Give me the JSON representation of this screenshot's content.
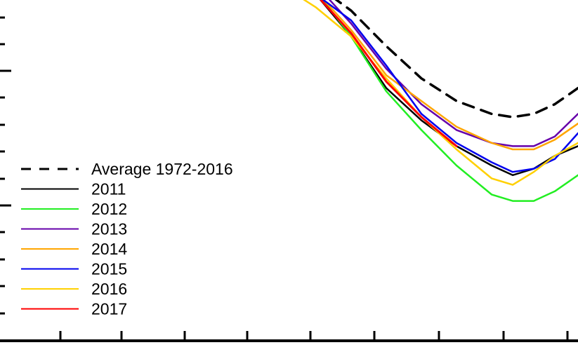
{
  "chart_data": {
    "type": "line",
    "title": "",
    "xlabel": "",
    "ylabel": "",
    "grid": false,
    "legend_position": "bottom-left",
    "xlim": [
      0,
      823
    ],
    "ylim": [
      0,
      100
    ],
    "x": [
      0,
      60,
      120,
      180,
      240,
      300,
      360,
      400,
      450,
      500,
      550,
      600,
      650,
      700,
      730,
      760,
      790,
      823
    ],
    "series": [
      {
        "name": "Average 1972-2016",
        "color": "#000000",
        "style": "dashed",
        "values": [
          null,
          null,
          null,
          null,
          null,
          null,
          null,
          100,
          96,
          88,
          77,
          67,
          60,
          56,
          55,
          56,
          59,
          64
        ]
      },
      {
        "name": "2011",
        "color": "#000000",
        "style": "solid",
        "values": [
          null,
          null,
          null,
          null,
          null,
          null,
          null,
          99,
          93,
          80,
          64,
          54,
          46,
          40,
          37,
          39,
          43,
          46
        ]
      },
      {
        "name": "2012",
        "color": "#22ee22",
        "style": "solid",
        "values": [
          null,
          null,
          null,
          null,
          null,
          null,
          null,
          99,
          94,
          80,
          63,
          51,
          40,
          31,
          29,
          29,
          32,
          37
        ]
      },
      {
        "name": "2013",
        "color": "#6600aa",
        "style": "solid",
        "values": [
          null,
          null,
          null,
          null,
          null,
          null,
          null,
          100,
          96,
          84,
          70,
          59,
          51,
          47,
          46,
          46,
          49,
          56
        ]
      },
      {
        "name": "2014",
        "color": "#ffa500",
        "style": "solid",
        "values": [
          null,
          null,
          null,
          null,
          null,
          null,
          null,
          99,
          94,
          82,
          68,
          60,
          52,
          47,
          45,
          45,
          48,
          53
        ]
      },
      {
        "name": "2015",
        "color": "#0000ee",
        "style": "solid",
        "values": [
          null,
          null,
          null,
          null,
          null,
          null,
          null,
          99,
          93,
          85,
          71,
          56,
          47,
          41,
          38,
          39,
          42,
          50
        ]
      },
      {
        "name": "2016",
        "color": "#ffd000",
        "style": "solid",
        "values": [
          null,
          null,
          null,
          null,
          null,
          null,
          100,
          96,
          89,
          80,
          67,
          55,
          45,
          36,
          34,
          38,
          43,
          47
        ]
      },
      {
        "name": "2017",
        "color": "#ff0000",
        "style": "solid",
        "values": [
          null,
          null,
          null,
          null,
          null,
          null,
          null,
          99,
          93,
          81,
          66,
          55,
          46,
          null,
          null,
          null,
          null,
          null
        ]
      }
    ]
  }
}
